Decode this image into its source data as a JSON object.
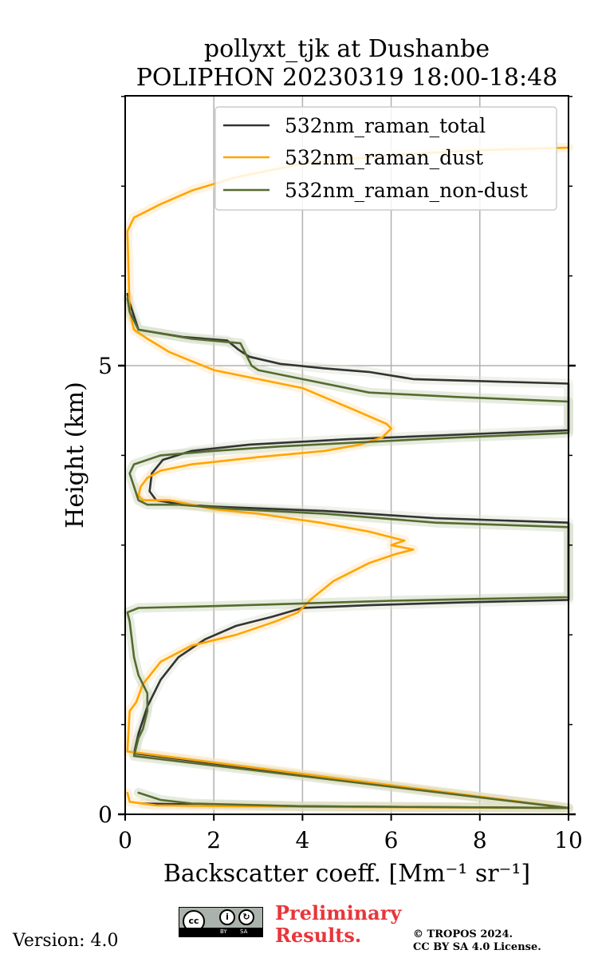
{
  "chart_data": {
    "type": "line",
    "title_line1": "pollyxt_tjk at Dushanbe",
    "title_line2": "POLIPHON 20230319 18:00-18:48",
    "xlabel": "Backscatter coeff. [Mm⁻¹ sr⁻¹]",
    "ylabel": "Height (km)",
    "xlim": [
      0,
      10
    ],
    "ylim": [
      0,
      8
    ],
    "xticks": [
      0,
      2,
      4,
      6,
      8,
      10
    ],
    "xtick_labels": [
      "0",
      "2",
      "4",
      "6",
      "8",
      "10"
    ],
    "yticks": [
      0,
      5
    ],
    "ytick_labels": [
      "0",
      "5"
    ],
    "yminor": [
      1,
      2,
      3,
      4,
      6,
      7,
      8
    ],
    "grid": "vertical lines at x ticks, horizontal line at 5 km",
    "legend_position": "upper-right",
    "series": [
      {
        "name": "532nm_raman_total",
        "color": "#333333",
        "points": [
          [
            0.4,
            0.12
          ],
          [
            1.5,
            0.11
          ],
          [
            4,
            0.09
          ],
          [
            7,
            0.08
          ],
          [
            10,
            0.07
          ],
          [
            0.2,
            0.68
          ],
          [
            0.3,
            0.9
          ],
          [
            0.5,
            1.2
          ],
          [
            0.8,
            1.5
          ],
          [
            1.2,
            1.75
          ],
          [
            1.8,
            1.95
          ],
          [
            2.5,
            2.1
          ],
          [
            3.3,
            2.2
          ],
          [
            4,
            2.3
          ],
          [
            5.5,
            2.33
          ],
          [
            7.5,
            2.36
          ],
          [
            10,
            2.39
          ],
          [
            10,
            3.25
          ],
          [
            7,
            3.3
          ],
          [
            4.5,
            3.38
          ],
          [
            2,
            3.43
          ],
          [
            1.3,
            3.45
          ],
          [
            0.7,
            3.5
          ],
          [
            0.55,
            3.6
          ],
          [
            0.6,
            3.8
          ],
          [
            0.85,
            3.95
          ],
          [
            1.5,
            4.05
          ],
          [
            2.8,
            4.12
          ],
          [
            5,
            4.18
          ],
          [
            7.5,
            4.23
          ],
          [
            10,
            4.28
          ],
          [
            10,
            4.8
          ],
          [
            8.5,
            4.82
          ],
          [
            6.5,
            4.85
          ],
          [
            5.5,
            4.93
          ],
          [
            4.5,
            4.97
          ],
          [
            3.5,
            5.02
          ],
          [
            2.8,
            5.1
          ],
          [
            2.55,
            5.18
          ],
          [
            2.3,
            5.28
          ],
          [
            1.3,
            5.32
          ],
          [
            0.3,
            5.4
          ],
          [
            0.1,
            5.7
          ],
          [
            0.05,
            5.8
          ]
        ]
      },
      {
        "name": "532nm_raman_dust",
        "color": "#ffa500",
        "points": [
          [
            0.05,
            0.24
          ],
          [
            0.1,
            0.14
          ],
          [
            0.7,
            0.1
          ],
          [
            2.5,
            0.09
          ],
          [
            5,
            0.08
          ],
          [
            10,
            0.07
          ],
          [
            0.05,
            0.7
          ],
          [
            0.1,
            1.15
          ],
          [
            0.25,
            1.25
          ],
          [
            0.4,
            1.45
          ],
          [
            0.8,
            1.7
          ],
          [
            1.5,
            1.88
          ],
          [
            2.5,
            2.0
          ],
          [
            3.4,
            2.15
          ],
          [
            3.9,
            2.25
          ],
          [
            4.2,
            2.4
          ],
          [
            4.7,
            2.6
          ],
          [
            5.5,
            2.8
          ],
          [
            6.1,
            2.9
          ],
          [
            6.5,
            2.95
          ],
          [
            6.0,
            3.0
          ],
          [
            6.3,
            3.05
          ],
          [
            5.5,
            3.15
          ],
          [
            4.4,
            3.25
          ],
          [
            3.0,
            3.35
          ],
          [
            2.0,
            3.4
          ],
          [
            1.5,
            3.45
          ],
          [
            1.0,
            3.5
          ],
          [
            0.4,
            3.5
          ],
          [
            0.3,
            3.55
          ],
          [
            0.35,
            3.65
          ],
          [
            0.5,
            3.75
          ],
          [
            0.8,
            3.83
          ],
          [
            1.5,
            3.9
          ],
          [
            3.0,
            3.98
          ],
          [
            4.5,
            4.05
          ],
          [
            5.3,
            4.12
          ],
          [
            5.8,
            4.2
          ],
          [
            6.0,
            4.3
          ],
          [
            5.9,
            4.35
          ],
          [
            5.2,
            4.5
          ],
          [
            4.0,
            4.75
          ],
          [
            3.0,
            4.85
          ],
          [
            2.0,
            4.95
          ],
          [
            1.5,
            5.05
          ],
          [
            1.0,
            5.15
          ],
          [
            0.5,
            5.3
          ],
          [
            0.2,
            5.4
          ],
          [
            0.1,
            5.6
          ],
          [
            0.05,
            6.5
          ],
          [
            0.2,
            6.65
          ],
          [
            0.8,
            6.8
          ],
          [
            1.5,
            6.95
          ],
          [
            2.5,
            7.1
          ],
          [
            4,
            7.25
          ],
          [
            6,
            7.35
          ],
          [
            8,
            7.4
          ],
          [
            10,
            7.43
          ]
        ]
      },
      {
        "name": "532nm_raman_non-dust",
        "color": "#556b2f",
        "points": [
          [
            0.3,
            0.24
          ],
          [
            0.8,
            0.16
          ],
          [
            1.5,
            0.12
          ],
          [
            4,
            0.09
          ],
          [
            7,
            0.08
          ],
          [
            10,
            0.07
          ],
          [
            0.2,
            0.65
          ],
          [
            0.3,
            0.85
          ],
          [
            0.4,
            0.95
          ],
          [
            0.5,
            1.15
          ],
          [
            0.5,
            1.35
          ],
          [
            0.3,
            1.55
          ],
          [
            0.2,
            1.75
          ],
          [
            0.1,
            2.15
          ],
          [
            0.05,
            2.25
          ],
          [
            0.3,
            2.3
          ],
          [
            2,
            2.32
          ],
          [
            4,
            2.35
          ],
          [
            6,
            2.38
          ],
          [
            8,
            2.4
          ],
          [
            10,
            2.42
          ],
          [
            10,
            3.2
          ],
          [
            7,
            3.25
          ],
          [
            4.5,
            3.35
          ],
          [
            2.5,
            3.4
          ],
          [
            1.2,
            3.45
          ],
          [
            0.5,
            3.45
          ],
          [
            0.3,
            3.5
          ],
          [
            0.2,
            3.65
          ],
          [
            0.1,
            3.8
          ],
          [
            0.2,
            3.9
          ],
          [
            0.8,
            4.0
          ],
          [
            2,
            4.05
          ],
          [
            3.5,
            4.1
          ],
          [
            5.5,
            4.15
          ],
          [
            7.5,
            4.2
          ],
          [
            10,
            4.25
          ],
          [
            10,
            4.6
          ],
          [
            7.5,
            4.65
          ],
          [
            5.5,
            4.7
          ],
          [
            4,
            4.85
          ],
          [
            3,
            4.95
          ],
          [
            2.85,
            5.0
          ],
          [
            2.7,
            5.15
          ],
          [
            2.6,
            5.25
          ],
          [
            1.5,
            5.3
          ],
          [
            0.3,
            5.4
          ],
          [
            0.1,
            5.6
          ],
          [
            0.05,
            5.75
          ]
        ]
      }
    ]
  },
  "footer": {
    "version": "Version: 4.0",
    "preliminary_line1": "Preliminary",
    "preliminary_line2": "Results.",
    "copyright_line1": "© TROPOS 2024.",
    "copyright_line2": "CC BY SA 4.0 License.",
    "license_badge": {
      "main": "cc",
      "by": "BY",
      "sa": "SA"
    }
  }
}
